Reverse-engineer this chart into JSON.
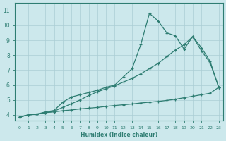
{
  "xlabel": "Humidex (Indice chaleur)",
  "bg_color": "#cce8ec",
  "grid_color": "#aacdd4",
  "line_color": "#2e7d72",
  "xlim": [
    -0.5,
    23.5
  ],
  "ylim": [
    3.6,
    11.5
  ],
  "xticks": [
    0,
    1,
    2,
    3,
    4,
    5,
    6,
    7,
    8,
    9,
    10,
    11,
    12,
    13,
    14,
    15,
    16,
    17,
    18,
    19,
    20,
    21,
    22,
    23
  ],
  "yticks": [
    4,
    5,
    6,
    7,
    8,
    9,
    10,
    11
  ],
  "line1_x": [
    0,
    1,
    2,
    3,
    4,
    5,
    6,
    7,
    8,
    9,
    10,
    11,
    12,
    13,
    14,
    15,
    16,
    17,
    18,
    19,
    20,
    21,
    22,
    23
  ],
  "line1_y": [
    3.85,
    4.0,
    4.05,
    4.2,
    4.3,
    4.85,
    5.2,
    5.35,
    5.5,
    5.65,
    5.85,
    6.0,
    6.55,
    7.1,
    8.7,
    10.8,
    10.3,
    9.5,
    9.3,
    8.4,
    9.25,
    8.3,
    7.5,
    5.85
  ],
  "line2_x": [
    0,
    1,
    2,
    3,
    4,
    5,
    6,
    7,
    8,
    9,
    10,
    11,
    12,
    13,
    14,
    15,
    16,
    17,
    18,
    19,
    20,
    21,
    22,
    23
  ],
  "line2_y": [
    3.85,
    4.0,
    4.05,
    4.15,
    4.25,
    4.5,
    4.75,
    5.0,
    5.3,
    5.55,
    5.75,
    5.95,
    6.2,
    6.45,
    6.75,
    7.1,
    7.45,
    7.9,
    8.35,
    8.7,
    9.25,
    8.5,
    7.6,
    5.85
  ],
  "line3_x": [
    0,
    1,
    2,
    3,
    4,
    5,
    6,
    7,
    8,
    9,
    10,
    11,
    12,
    13,
    14,
    15,
    16,
    17,
    18,
    19,
    20,
    21,
    22,
    23
  ],
  "line3_y": [
    3.85,
    4.0,
    4.05,
    4.15,
    4.2,
    4.28,
    4.33,
    4.4,
    4.45,
    4.5,
    4.57,
    4.63,
    4.68,
    4.73,
    4.8,
    4.85,
    4.9,
    4.97,
    5.05,
    5.15,
    5.25,
    5.35,
    5.45,
    5.85
  ]
}
